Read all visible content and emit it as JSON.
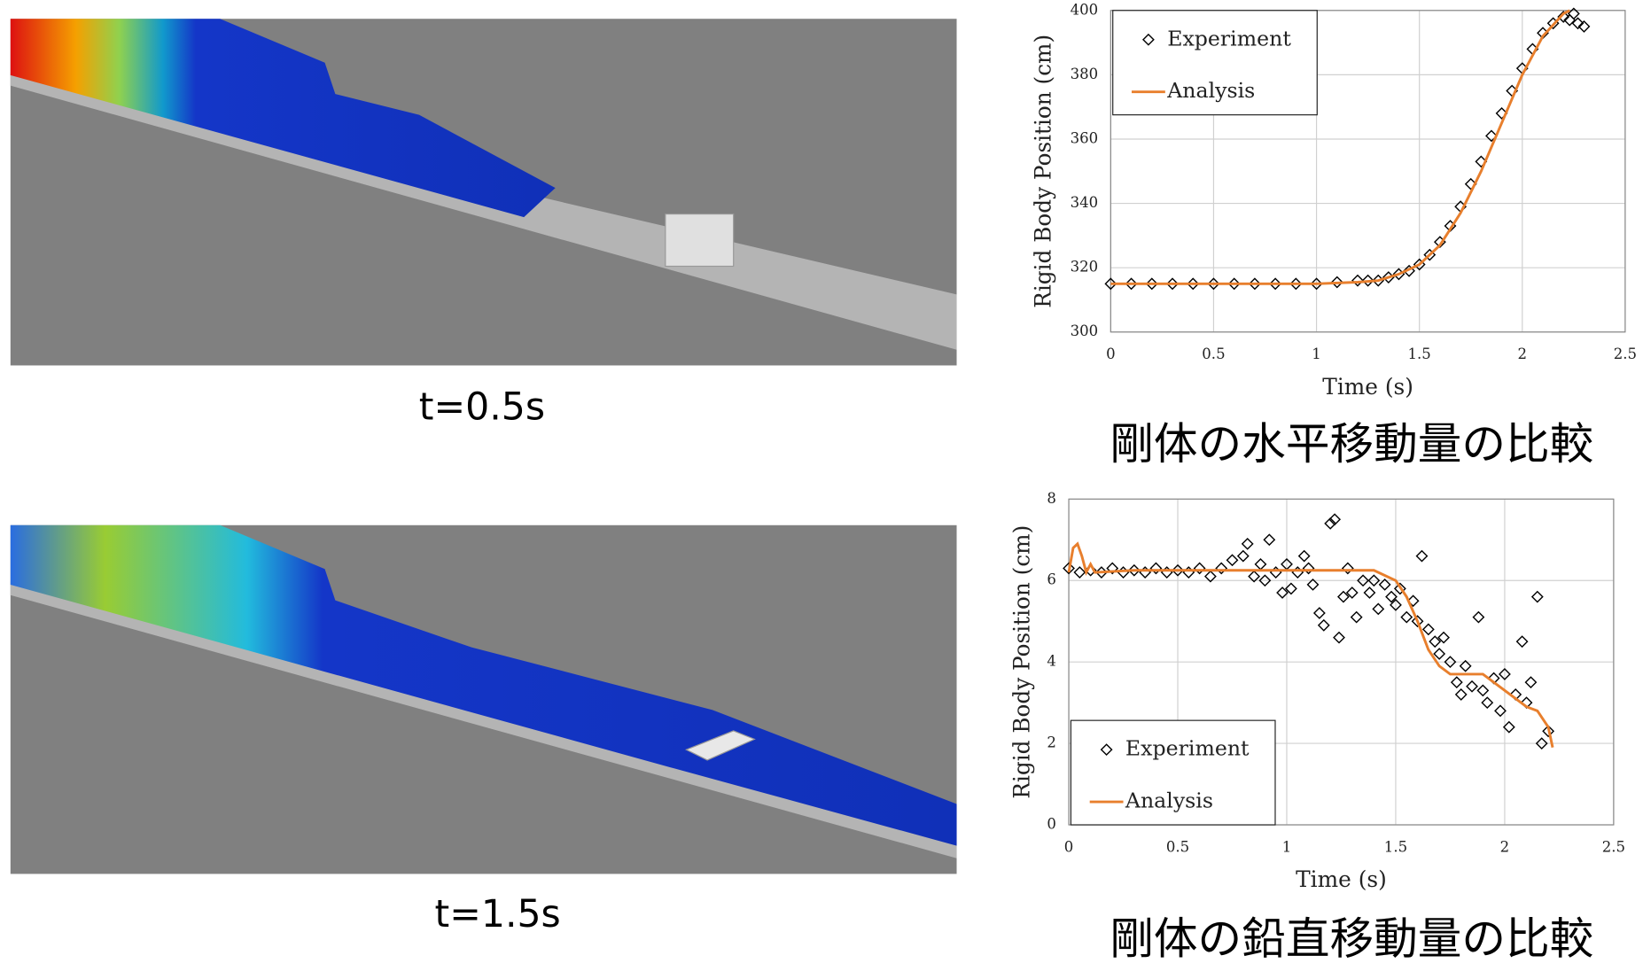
{
  "panels": [
    {
      "caption": "t=0.5s"
    },
    {
      "caption": "t=1.5s"
    }
  ],
  "chart_data": [
    {
      "type": "scatter",
      "title": "剛体の水平移動量の比較",
      "x_label": "Time (s)",
      "y_label": "Rigid Body Position (cm)",
      "xlim": [
        0,
        2.5
      ],
      "ylim": [
        300,
        400
      ],
      "xticks": [
        0,
        0.5,
        1,
        1.5,
        2,
        2.5
      ],
      "yticks": [
        300,
        320,
        340,
        360,
        380,
        400
      ],
      "grid": true,
      "legend": "upper left",
      "series": [
        {
          "name": "Experiment",
          "color": "#000000",
          "mode": "markers",
          "x": [
            0,
            0.1,
            0.2,
            0.3,
            0.4,
            0.5,
            0.6,
            0.7,
            0.8,
            0.9,
            1.0,
            1.1,
            1.2,
            1.25,
            1.3,
            1.35,
            1.4,
            1.45,
            1.5,
            1.55,
            1.6,
            1.65,
            1.7,
            1.75,
            1.8,
            1.85,
            1.9,
            1.95,
            2.0,
            2.05,
            2.1,
            2.15,
            2.2,
            2.23,
            2.25,
            2.27,
            2.3
          ],
          "values": [
            315,
            315,
            315,
            315,
            315,
            315,
            315,
            315,
            315,
            315,
            315,
            315.5,
            316,
            316,
            316,
            317,
            318,
            319,
            321,
            324,
            328,
            333,
            339,
            346,
            353,
            361,
            368,
            375,
            382,
            388,
            393,
            396,
            398,
            397,
            399,
            396,
            395
          ]
        },
        {
          "name": "Analysis",
          "color": "#e87f2d",
          "mode": "line",
          "x": [
            0,
            0.5,
            1.0,
            1.2,
            1.3,
            1.4,
            1.5,
            1.6,
            1.7,
            1.8,
            1.9,
            2.0,
            2.1,
            2.2,
            2.23
          ],
          "values": [
            315,
            315,
            315,
            315.5,
            316,
            318,
            321,
            327,
            337,
            350,
            365,
            380,
            392,
            399,
            400
          ]
        }
      ]
    },
    {
      "type": "scatter",
      "title": "剛体の鉛直移動量の比較",
      "x_label": "Time (s)",
      "y_label": "Rigid Body Position (cm)",
      "xlim": [
        0,
        2.5
      ],
      "ylim": [
        0,
        8
      ],
      "xticks": [
        0,
        0.5,
        1,
        1.5,
        2,
        2.5
      ],
      "yticks": [
        0,
        2,
        4,
        6,
        8
      ],
      "grid": true,
      "legend": "lower left",
      "series": [
        {
          "name": "Experiment",
          "color": "#000000",
          "mode": "markers",
          "x": [
            0,
            0.05,
            0.1,
            0.15,
            0.2,
            0.25,
            0.3,
            0.35,
            0.4,
            0.45,
            0.5,
            0.55,
            0.6,
            0.65,
            0.7,
            0.75,
            0.8,
            0.82,
            0.85,
            0.88,
            0.9,
            0.92,
            0.95,
            0.98,
            1.0,
            1.02,
            1.05,
            1.08,
            1.1,
            1.12,
            1.15,
            1.17,
            1.2,
            1.22,
            1.24,
            1.26,
            1.28,
            1.3,
            1.32,
            1.35,
            1.38,
            1.4,
            1.42,
            1.45,
            1.48,
            1.5,
            1.52,
            1.55,
            1.58,
            1.6,
            1.62,
            1.65,
            1.68,
            1.7,
            1.72,
            1.75,
            1.78,
            1.8,
            1.82,
            1.85,
            1.88,
            1.9,
            1.92,
            1.95,
            1.98,
            2.0,
            2.02,
            2.05,
            2.08,
            2.1,
            2.12,
            2.15,
            2.17,
            2.2
          ],
          "values": [
            6.3,
            6.2,
            6.25,
            6.2,
            6.3,
            6.2,
            6.25,
            6.2,
            6.3,
            6.2,
            6.25,
            6.2,
            6.3,
            6.1,
            6.3,
            6.5,
            6.6,
            6.9,
            6.1,
            6.4,
            6.0,
            7.0,
            6.2,
            5.7,
            6.4,
            5.8,
            6.2,
            6.6,
            6.3,
            5.9,
            5.2,
            4.9,
            7.4,
            7.5,
            4.6,
            5.6,
            6.3,
            5.7,
            5.1,
            6.0,
            5.7,
            6.0,
            5.3,
            5.9,
            5.6,
            5.4,
            5.8,
            5.1,
            5.5,
            5.0,
            6.6,
            4.8,
            4.5,
            4.2,
            4.6,
            4.0,
            3.5,
            3.2,
            3.9,
            3.4,
            5.1,
            3.3,
            3.0,
            3.6,
            2.8,
            3.7,
            2.4,
            3.2,
            4.5,
            3.0,
            3.5,
            5.6,
            2.0,
            2.3
          ]
        },
        {
          "name": "Analysis",
          "color": "#e87f2d",
          "mode": "line",
          "x": [
            0,
            0.02,
            0.04,
            0.06,
            0.08,
            0.1,
            0.12,
            0.3,
            1.0,
            1.4,
            1.5,
            1.55,
            1.6,
            1.65,
            1.7,
            1.75,
            1.8,
            1.9,
            2.0,
            2.1,
            2.15,
            2.2,
            2.22
          ],
          "values": [
            6.2,
            6.8,
            6.9,
            6.6,
            6.2,
            6.4,
            6.2,
            6.25,
            6.25,
            6.25,
            6.0,
            5.6,
            5.0,
            4.3,
            3.9,
            3.7,
            3.7,
            3.7,
            3.3,
            2.9,
            2.8,
            2.4,
            1.9
          ]
        }
      ]
    }
  ]
}
